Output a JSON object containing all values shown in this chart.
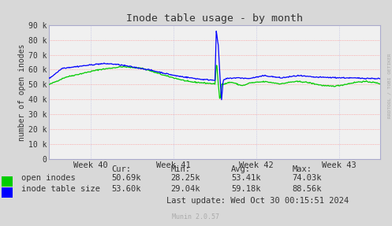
{
  "title": "Inode table usage - by month",
  "ylabel": "number of open inodes",
  "bg_color": "#d8d8d8",
  "plot_bg_color": "#f0f0f0",
  "grid_color_horiz": "#ff8888",
  "grid_color_vert": "#aaaacc",
  "ylim": [
    0,
    90000
  ],
  "yticks": [
    0,
    10000,
    20000,
    30000,
    40000,
    50000,
    60000,
    70000,
    80000,
    90000
  ],
  "ytick_labels": [
    "0",
    "10 k",
    "20 k",
    "30 k",
    "40 k",
    "50 k",
    "60 k",
    "70 k",
    "80 k",
    "90 k"
  ],
  "xtick_labels": [
    "Week 40",
    "Week 41",
    "Week 42",
    "Week 43"
  ],
  "green_color": "#00cc00",
  "blue_color": "#0000ff",
  "legend": {
    "open_inodes_label": "open inodes",
    "inode_table_label": "inode table size"
  },
  "stats": {
    "headers": [
      "Cur:",
      "Min:",
      "Avg:",
      "Max:"
    ],
    "open_inodes": [
      "50.69k",
      "28.25k",
      "53.41k",
      "74.03k"
    ],
    "inode_table": [
      "53.60k",
      "29.04k",
      "59.18k",
      "88.56k"
    ]
  },
  "last_update": "Last update: Wed Oct 30 00:15:51 2024",
  "munin_label": "Munin 2.0.57",
  "watermark": "RRDTOOL / TOBI OETIKER"
}
